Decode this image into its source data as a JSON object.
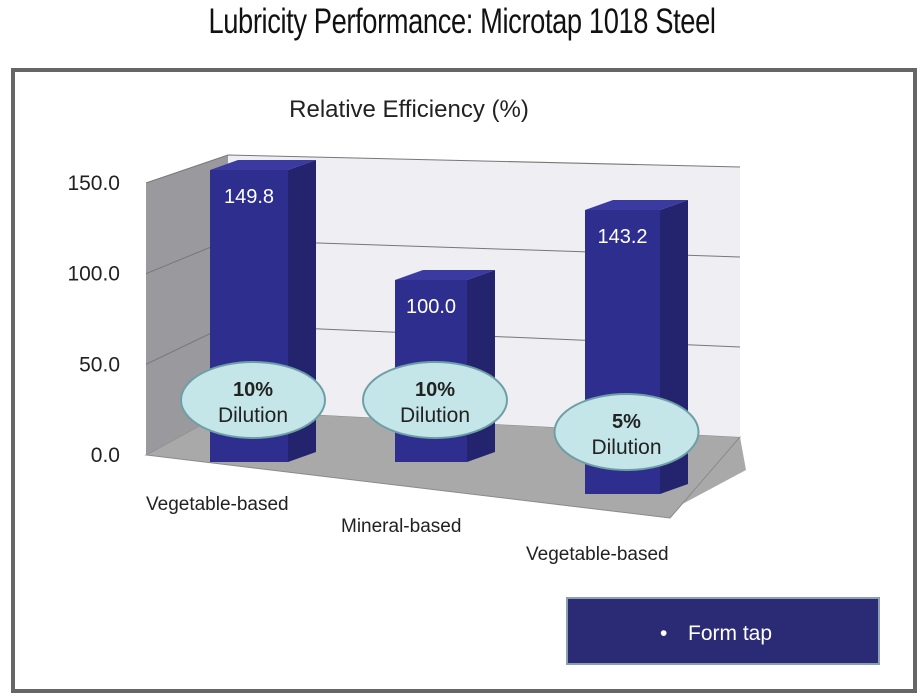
{
  "page_title": "Lubricity Performance: Microtap 1018 Steel",
  "chart_data": {
    "type": "bar",
    "style": "3d-column",
    "title": "Relative Efficiency (%)",
    "xlabel": "",
    "ylabel": "",
    "categories": [
      "Vegetable-based",
      "Mineral-based",
      "Vegetable-based"
    ],
    "series": [
      {
        "name": "Form tap",
        "values": [
          149.8,
          100.0,
          143.2
        ]
      }
    ],
    "data_labels": [
      "149.8",
      "100.0",
      "143.2"
    ],
    "annotations": [
      {
        "bold": "10%",
        "text": "Dilution"
      },
      {
        "bold": "10%",
        "text": "Dilution"
      },
      {
        "bold": "5%",
        "text": "Dilution"
      }
    ],
    "yticks": [
      "0.0",
      "50.0",
      "100.0",
      "150.0"
    ],
    "ylim": [
      0,
      150
    ],
    "grid": true,
    "legend": {
      "entries": [
        "Form tap"
      ],
      "marker": "•",
      "placement": "bottom-right"
    },
    "colors": {
      "bar_front": "#2e2e8f",
      "bar_side": "#23236e",
      "bar_top": "#3a3aa0",
      "legend_bg": "#2b2b75",
      "bubble_fill": "#c5e6e8",
      "bubble_stroke": "#6e9fa6",
      "wall_back": "#eeeef3",
      "wall_side": "#9a9a9e",
      "floor": "#a9a9a9"
    }
  }
}
